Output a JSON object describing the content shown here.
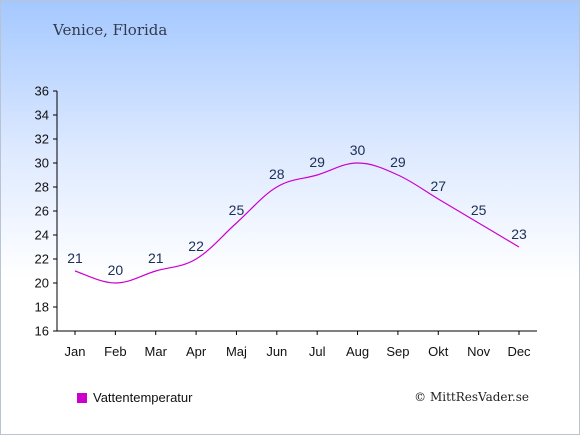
{
  "header": {
    "title": "Venice, Florida"
  },
  "legend": {
    "label": "Vattentemperatur",
    "color": "#cc00cc"
  },
  "footer": {
    "credit": "© MittResVader.se"
  },
  "chart_data": {
    "type": "line",
    "title": "Venice, Florida",
    "categories": [
      "Jan",
      "Feb",
      "Mar",
      "Apr",
      "Maj",
      "Jun",
      "Jul",
      "Aug",
      "Sep",
      "Okt",
      "Nov",
      "Dec"
    ],
    "series": [
      {
        "name": "Vattentemperatur",
        "values": [
          21,
          20,
          21,
          22,
          25,
          28,
          29,
          30,
          29,
          27,
          25,
          23
        ],
        "color": "#cc00cc"
      }
    ],
    "ylim": [
      16,
      36
    ],
    "yticks": [
      16,
      18,
      20,
      22,
      24,
      26,
      28,
      30,
      32,
      34,
      36
    ],
    "xlabel": "",
    "ylabel": "",
    "grid": false,
    "data_labels": true,
    "legend_position": "bottom-left"
  }
}
